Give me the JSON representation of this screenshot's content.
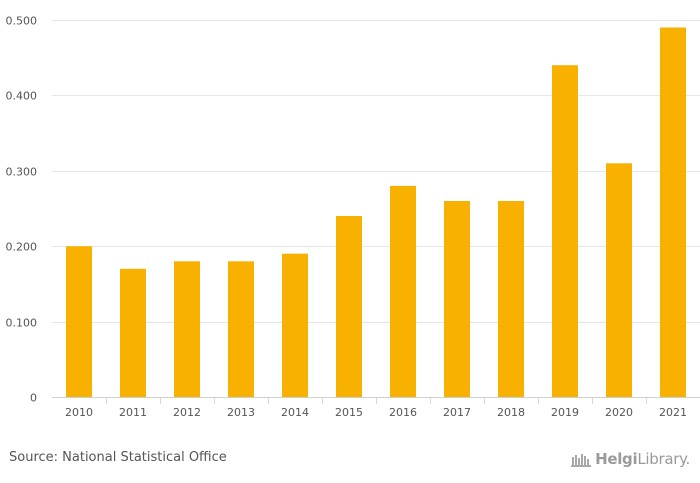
{
  "chart_data": {
    "type": "bar",
    "categories": [
      "2010",
      "2011",
      "2012",
      "2013",
      "2014",
      "2015",
      "2016",
      "2017",
      "2018",
      "2019",
      "2020",
      "2021"
    ],
    "values": [
      0.2,
      0.17,
      0.18,
      0.18,
      0.19,
      0.24,
      0.28,
      0.26,
      0.26,
      0.44,
      0.31,
      0.49
    ],
    "ylim": [
      0,
      0.5
    ],
    "yticks": [
      0,
      0.1,
      0.2,
      0.3,
      0.4,
      0.5
    ],
    "ytick_labels": [
      "0",
      "0.100",
      "0.200",
      "0.300",
      "0.400",
      "0.500"
    ],
    "title": "",
    "xlabel": "",
    "ylabel": "",
    "bar_color": "#f9b100",
    "grid": true
  },
  "footer": {
    "source": "Source: National Statistical Office",
    "logo_text_bold": "Helgi",
    "logo_text": "Library."
  }
}
